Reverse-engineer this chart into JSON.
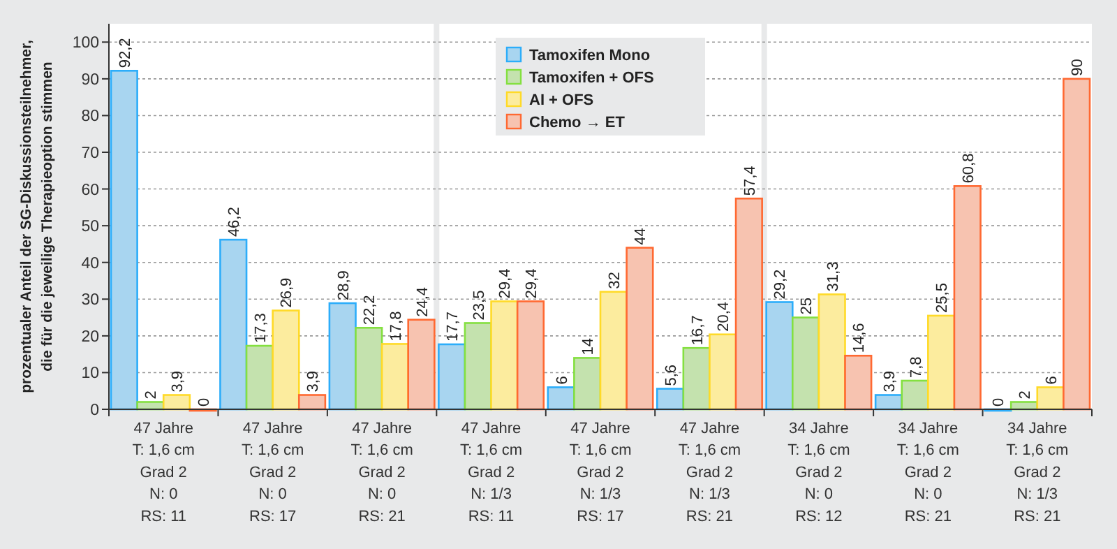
{
  "chart_data": {
    "type": "bar",
    "ylabel": "prozentualer Anteil der SG-Diskussionsteilnehmer,\ndie für die jeweilige Therapieoption stimmen",
    "categories": [
      "47 Jahre\nT: 1,6 cm\nGrad 2\nN: 0\nRS: 11",
      "47 Jahre\nT: 1,6 cm\nGrad 2\nN: 0\nRS: 17",
      "47 Jahre\nT: 1,6 cm\nGrad 2\nN: 0\nRS: 21",
      "47 Jahre\nT: 1,6 cm\nGrad 2\nN: 1/3\nRS: 11",
      "47 Jahre\nT: 1,6 cm\nGrad 2\nN: 1/3\nRS: 17",
      "47 Jahre\nT: 1,6 cm\nGrad 2\nN: 1/3\nRS: 21",
      "34 Jahre\nT: 1,6 cm\nGrad 2\nN: 0\nRS: 12",
      "34 Jahre\nT: 1,6 cm\nGrad 2\nN: 0\nRS: 21",
      "34 Jahre\nT: 1,6 cm\nGrad 2\nN: 1/3\nRS: 21"
    ],
    "series": [
      {
        "name": "Tamoxifen Mono",
        "color": "#a8d5f0",
        "values": [
          92.2,
          46.2,
          28.9,
          17.7,
          6,
          5.6,
          29.2,
          3.9,
          0
        ],
        "value_labels": [
          "92,2",
          "46,2",
          "28,9",
          "17,7",
          "6",
          "5,6",
          "29,2",
          "3,9",
          "0"
        ]
      },
      {
        "name": "Tamoxifen + OFS",
        "color": "#c4e2ae",
        "values": [
          2,
          17.3,
          22.2,
          23.5,
          14,
          16.7,
          25,
          7.8,
          2
        ],
        "value_labels": [
          "2",
          "17,3",
          "22,2",
          "23,5",
          "14",
          "16,7",
          "25",
          "7,8",
          "2"
        ]
      },
      {
        "name": "AI + OFS",
        "color": "#fcec9e",
        "values": [
          3.9,
          26.9,
          17.8,
          29.4,
          32,
          20.4,
          31.3,
          25.5,
          6
        ],
        "value_labels": [
          "3,9",
          "26,9",
          "17,8",
          "29,4",
          "32",
          "20,4",
          "31,3",
          "25,5",
          "6"
        ]
      },
      {
        "name": "Chemo → ET",
        "color": "#f7c3b0",
        "values": [
          0,
          3.9,
          24.4,
          29.4,
          44,
          57.4,
          14.6,
          60.8,
          90
        ],
        "value_labels": [
          "0",
          "3,9",
          "24,4",
          "29,4",
          "44",
          "57,4",
          "14,6",
          "60,8",
          "90"
        ]
      }
    ],
    "ylim": [
      0,
      105
    ],
    "yticks": [
      0,
      10,
      20,
      30,
      40,
      50,
      60,
      70,
      80,
      90,
      100
    ],
    "grid": "y",
    "legend": "top"
  }
}
